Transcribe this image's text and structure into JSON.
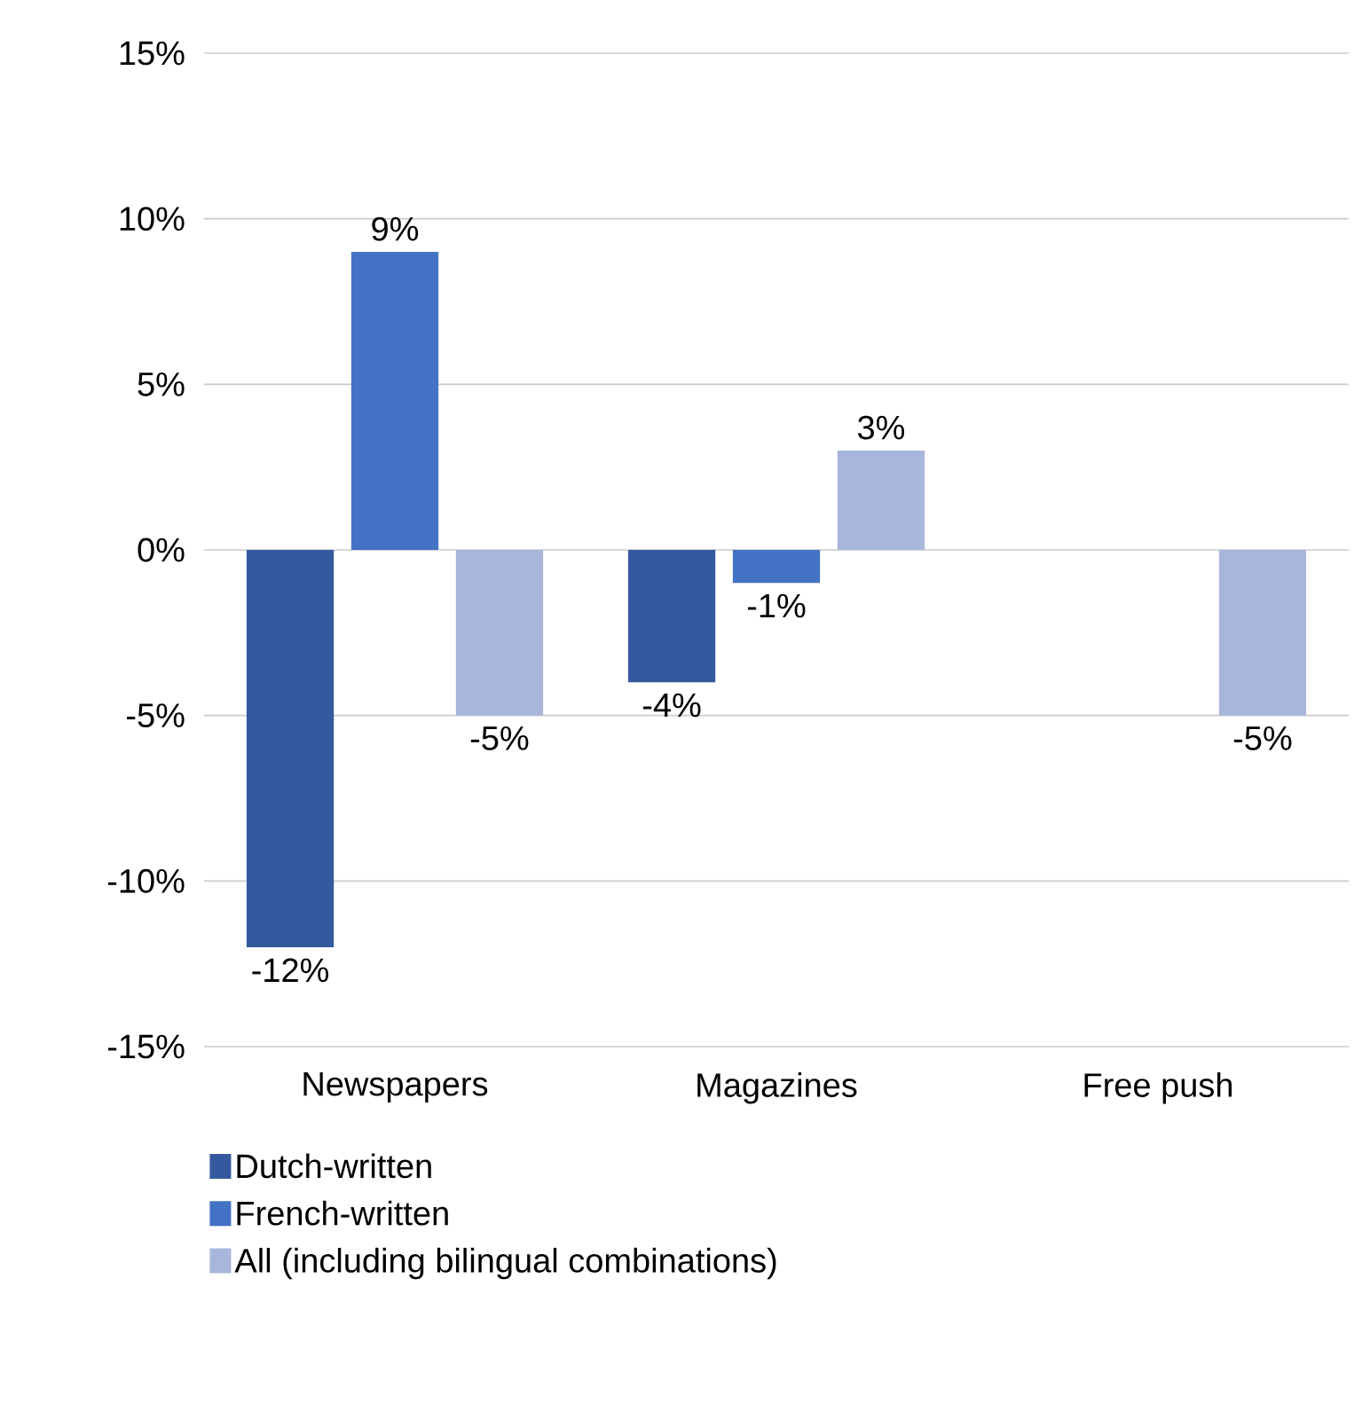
{
  "chart_data": {
    "type": "bar",
    "categories": [
      "Newspapers",
      "Magazines",
      "Free push"
    ],
    "series": [
      {
        "name": "Dutch-written",
        "color": "#34599e",
        "values": [
          -12,
          -4,
          null
        ],
        "value_labels": [
          "-12%",
          "-4%",
          null
        ]
      },
      {
        "name": "French-written",
        "color": "#4472c4",
        "values": [
          9,
          -1,
          null
        ],
        "value_labels": [
          "9%",
          "-1%",
          null
        ]
      },
      {
        "name": "All (including bilingual combinations)",
        "color": "#a9b6dc",
        "values": [
          -5,
          3,
          -5
        ],
        "value_labels": [
          "-5%",
          "3%",
          "-5%"
        ]
      }
    ],
    "ylim": [
      -15,
      15
    ],
    "yticks": [
      {
        "value": -15,
        "label": "-15%"
      },
      {
        "value": -10,
        "label": "-10%"
      },
      {
        "value": -5,
        "label": "-5%"
      },
      {
        "value": 0,
        "label": "0%"
      },
      {
        "value": 5,
        "label": "5%"
      },
      {
        "value": 10,
        "label": "10%"
      },
      {
        "value": 15,
        "label": "15%"
      }
    ],
    "grid": "y",
    "legend": "bottom"
  }
}
